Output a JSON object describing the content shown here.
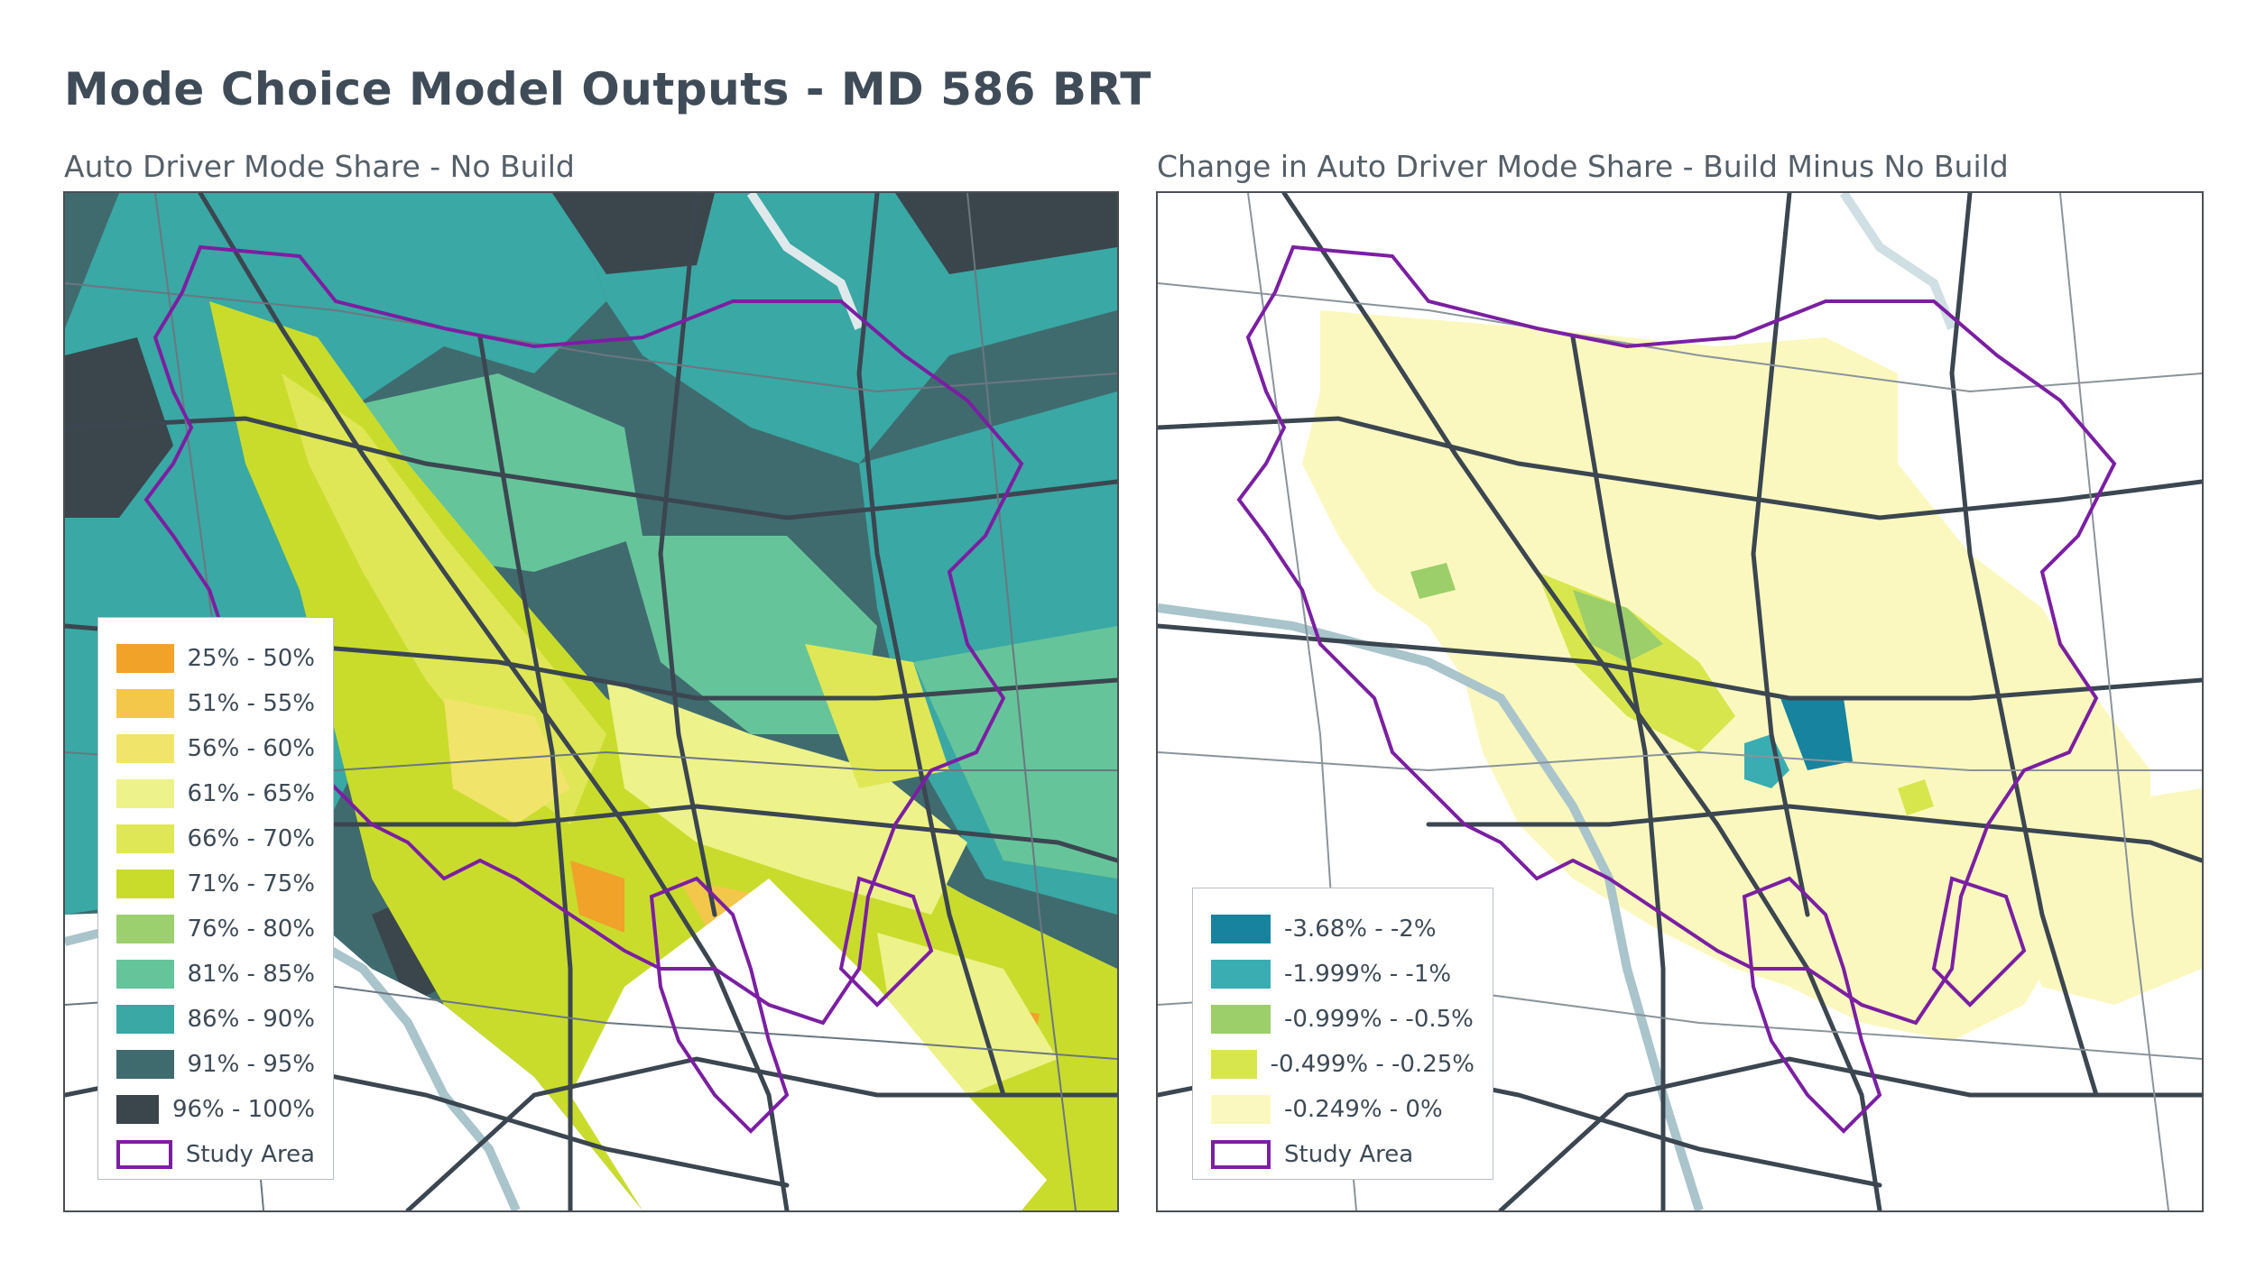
{
  "title": "Mode Choice Model Outputs - MD 586 BRT",
  "left_map": {
    "subtitle": "Auto Driver Mode Share - No Build",
    "legend": [
      {
        "label": "25% - 50%",
        "color": "#f0a229"
      },
      {
        "label": "51% - 55%",
        "color": "#f3c74a"
      },
      {
        "label": "56% - 60%",
        "color": "#f1e46b"
      },
      {
        "label": "61% - 65%",
        "color": "#eef28a"
      },
      {
        "label": "66% - 70%",
        "color": "#dfe756"
      },
      {
        "label": "71% - 75%",
        "color": "#c9dc2c"
      },
      {
        "label": "76% - 80%",
        "color": "#9cd06e"
      },
      {
        "label": "81% - 85%",
        "color": "#66c49a"
      },
      {
        "label": "86% - 90%",
        "color": "#3aa8a4"
      },
      {
        "label": "91% - 95%",
        "color": "#3f6b6f"
      },
      {
        "label": "96% - 100%",
        "color": "#3a464c"
      },
      {
        "label": "Study Area",
        "color": "#7b1fa2",
        "outline": true
      }
    ]
  },
  "right_map": {
    "subtitle": "Change in Auto Driver Mode Share - Build Minus No Build",
    "legend": [
      {
        "label": "-3.68% - -2%",
        "color": "#17839e"
      },
      {
        "label": "-1.999% - -1%",
        "color": "#3aadb2"
      },
      {
        "label": "-0.999% - -0.5%",
        "color": "#9ccf6a"
      },
      {
        "label": "-0.499% - -0.25%",
        "color": "#d8e64e"
      },
      {
        "label": "-0.249% - 0%",
        "color": "#fbf8bf"
      },
      {
        "label": "Study Area",
        "color": "#7b1fa2",
        "outline": true
      }
    ]
  }
}
